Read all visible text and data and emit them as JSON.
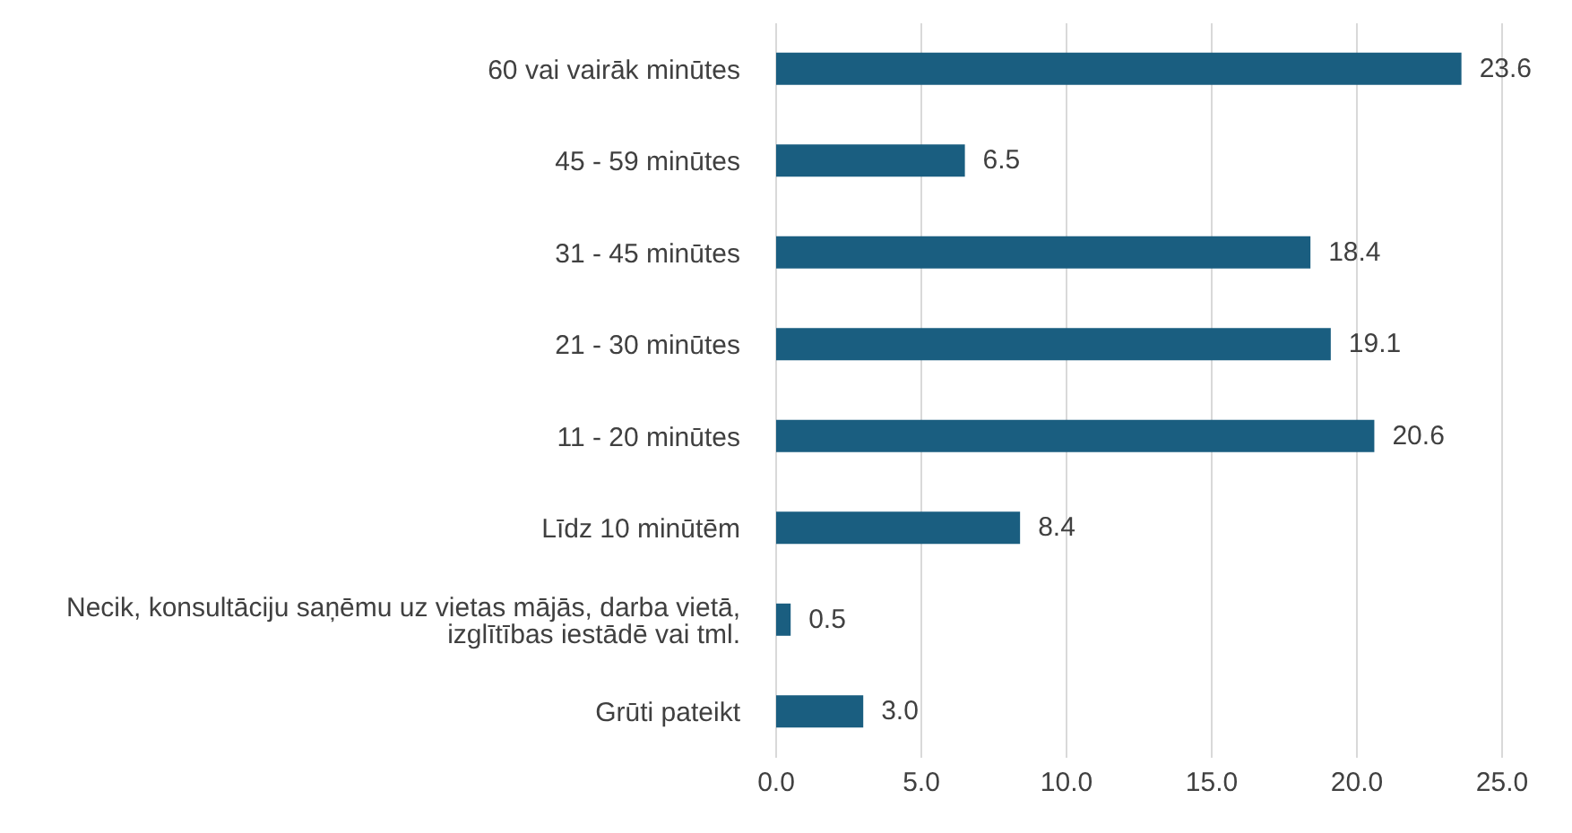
{
  "chart_data": {
    "type": "bar",
    "orientation": "horizontal",
    "categories": [
      "60 vai vairāk minūtes",
      "45 - 59 minūtes",
      "31 - 45 minūtes",
      "21 - 30 minūtes",
      "11 - 20 minūtes",
      "Līdz 10 minūtēm",
      "Necik, konsultāciju saņēmu uz vietas mājās, darba vietā, izglītības iestādē vai tml.",
      "Grūti pateikt"
    ],
    "values": [
      23.6,
      6.5,
      18.4,
      19.1,
      20.6,
      8.4,
      0.5,
      3.0
    ],
    "value_labels": [
      "23.6",
      "6.5",
      "18.4",
      "19.1",
      "20.6",
      "8.4",
      "0.5",
      "3.0"
    ],
    "color": "#1a5e80",
    "xlim": [
      0,
      25
    ],
    "xticks": [
      {
        "value": 0,
        "label": "0.0"
      },
      {
        "value": 5,
        "label": "5.0"
      },
      {
        "value": 10,
        "label": "10.0"
      },
      {
        "value": 15,
        "label": "15.0"
      },
      {
        "value": 20,
        "label": "20.0"
      },
      {
        "value": 25,
        "label": "25.0"
      }
    ],
    "grid": "x"
  }
}
